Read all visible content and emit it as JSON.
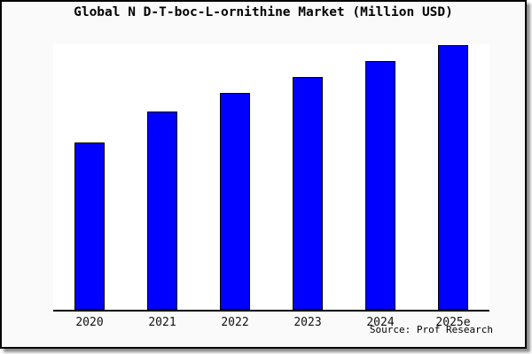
{
  "window": {
    "bg_color": "#fafafa",
    "border_color": "#000000",
    "plot_bg_color": "#ffffff"
  },
  "title": "Global N D-T-boc-L-ornithine Market (Million USD)",
  "source_text": "Source: Prof Research",
  "chart_data": {
    "type": "bar",
    "title": "Global N D-T-boc-L-ornithine Market (Million USD)",
    "categories": [
      "2020",
      "2021",
      "2022",
      "2023",
      "2024",
      "2025e"
    ],
    "values": [
      63.3,
      75.0,
      81.9,
      87.9,
      93.9,
      100.1
    ],
    "values_note": "no y-axis scale shown in image; values estimated from bar heights, indexed to 2025e = 100",
    "xlabel": "",
    "ylabel": "",
    "ylim": [
      0,
      100.3
    ],
    "grid": false,
    "legend": false,
    "bar_color": "#0000ff",
    "bar_border_color": "#000000",
    "source": "Source: Prof Research"
  }
}
